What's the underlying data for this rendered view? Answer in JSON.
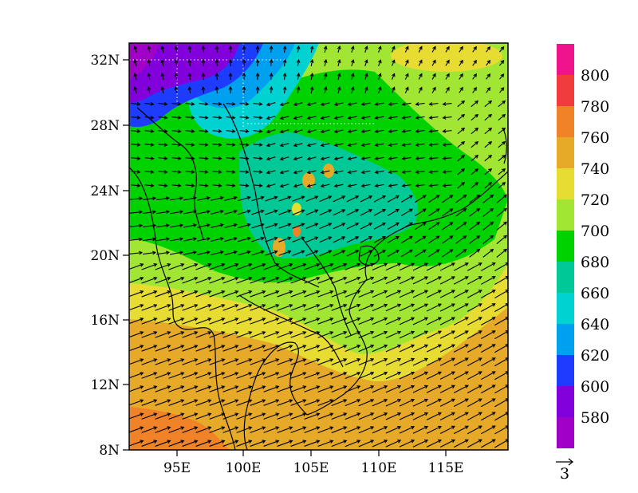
{
  "map": {
    "lat_ticks": [
      "32N",
      "28N",
      "24N",
      "20N",
      "16N",
      "12N",
      "8N"
    ],
    "lon_ticks": [
      "95E",
      "100E",
      "105E",
      "110E",
      "115E"
    ],
    "extent": {
      "lon_min": 91.5,
      "lon_max": 119.5,
      "lat_min": 8,
      "lat_max": 33
    }
  },
  "colorbar": {
    "labels": [
      "800",
      "780",
      "760",
      "740",
      "720",
      "700",
      "680",
      "660",
      "640",
      "620",
      "600",
      "580"
    ],
    "colors": [
      "#f0148c",
      "#f03c3c",
      "#f08228",
      "#e6aa28",
      "#e6dc32",
      "#a0e632",
      "#00d200",
      "#00c896",
      "#00d2d2",
      "#00a0f0",
      "#1e3cff",
      "#8200dc",
      "#a000c8"
    ]
  },
  "vector_reference": {
    "label": "3"
  }
}
